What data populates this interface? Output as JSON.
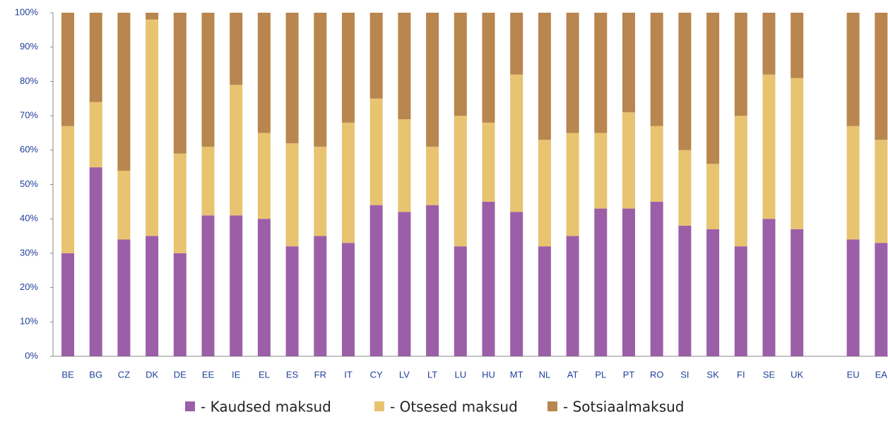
{
  "chart_data": {
    "type": "stacked-bar",
    "categories": [
      "BE",
      "BG",
      "CZ",
      "DK",
      "DE",
      "EE",
      "IE",
      "EL",
      "ES",
      "FR",
      "IT",
      "CY",
      "LV",
      "LT",
      "LU",
      "HU",
      "MT",
      "NL",
      "AT",
      "PL",
      "PT",
      "RO",
      "SI",
      "SK",
      "FI",
      "SE",
      "UK",
      null,
      "EU",
      "EA"
    ],
    "series": [
      {
        "name": "- Kaudsed maksud",
        "color": "#9b5fa8",
        "values": [
          30,
          55,
          34,
          35,
          30,
          41,
          41,
          40,
          32,
          35,
          33,
          44,
          42,
          44,
          32,
          45,
          42,
          32,
          35,
          43,
          43,
          45,
          38,
          37,
          32,
          40,
          37,
          null,
          34,
          33
        ]
      },
      {
        "name": "- Otsesed maksud",
        "color": "#e8c370",
        "values": [
          37,
          19,
          20,
          63,
          29,
          20,
          38,
          25,
          30,
          26,
          35,
          31,
          27,
          17,
          38,
          23,
          40,
          31,
          30,
          22,
          28,
          22,
          22,
          19,
          38,
          42,
          44,
          null,
          33,
          30
        ]
      },
      {
        "name": "- Sotsiaalmaksud",
        "color": "#b8864e",
        "values": [
          33,
          26,
          46,
          2,
          41,
          39,
          21,
          35,
          38,
          39,
          32,
          25,
          31,
          39,
          30,
          32,
          18,
          37,
          35,
          35,
          29,
          33,
          40,
          44,
          30,
          18,
          19,
          null,
          33,
          37
        ]
      }
    ],
    "ylim": [
      0,
      100
    ],
    "yticks": [
      {
        "value": 0,
        "label": "0%"
      },
      {
        "value": 10,
        "label": "10%"
      },
      {
        "value": 20,
        "label": "20%"
      },
      {
        "value": 30,
        "label": "30%"
      },
      {
        "value": 40,
        "label": "40%"
      },
      {
        "value": 50,
        "label": "50%"
      },
      {
        "value": 60,
        "label": "60%"
      },
      {
        "value": 70,
        "label": "70%"
      },
      {
        "value": 80,
        "label": "80%"
      },
      {
        "value": 90,
        "label": "90%"
      },
      {
        "value": 100,
        "label": "100%"
      }
    ]
  }
}
